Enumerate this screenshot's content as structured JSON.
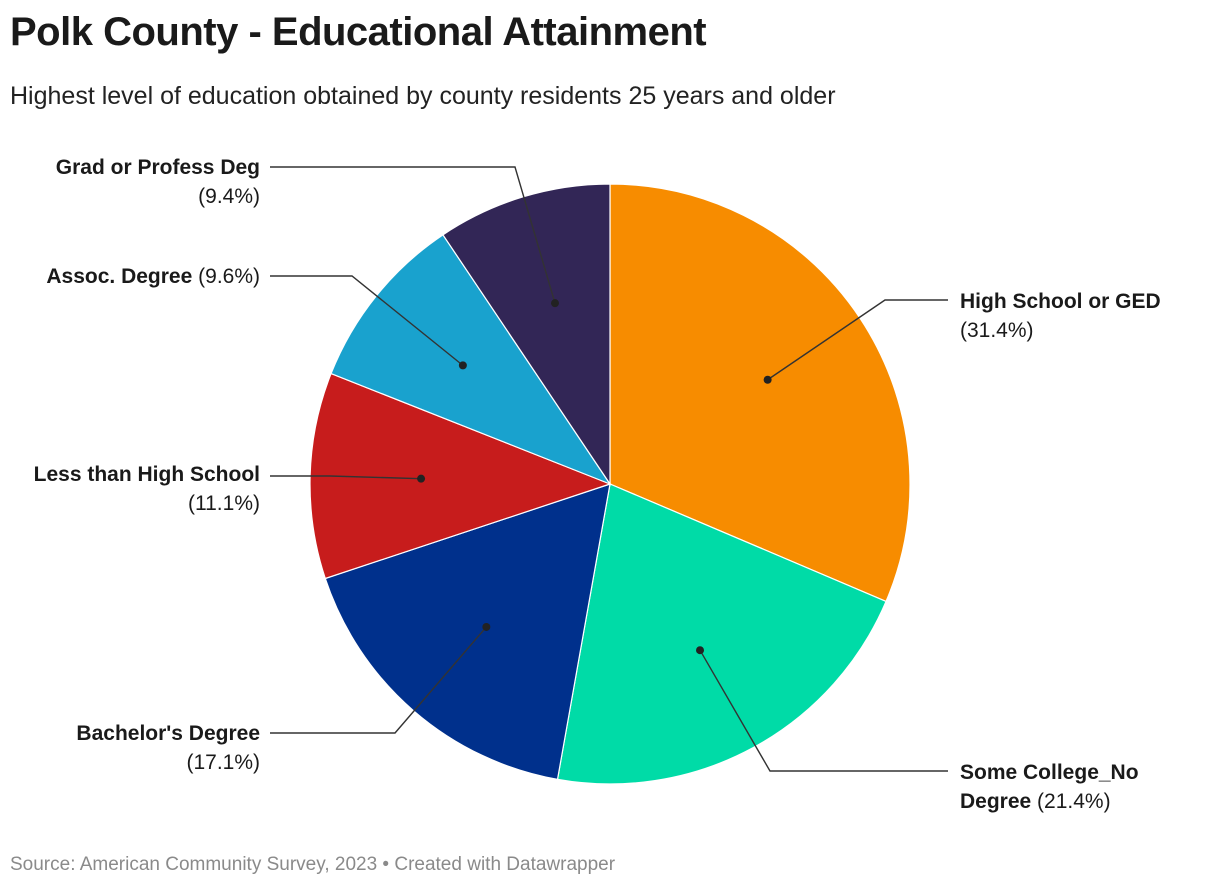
{
  "title": "Polk County - Educational Attainment",
  "subtitle": "Highest level of education obtained by county residents 25 years and older",
  "source": "Source: American Community Survey, 2023 • Created with Datawrapper",
  "chart_data": {
    "type": "pie",
    "title": "Polk County - Educational Attainment",
    "subtitle": "Highest level of education obtained by county residents 25 years and older",
    "categories": [
      "High School or GED",
      "Some College_No Degree",
      "Bachelor's Degree",
      "Less than High School",
      "Assoc. Degree",
      "Grad or Profess Deg"
    ],
    "values": [
      31.4,
      21.4,
      17.1,
      11.1,
      9.6,
      9.4
    ],
    "value_labels": [
      "(31.4%)",
      "(21.4%)",
      "(17.1%)",
      "(11.1%)",
      "(9.6%)",
      "(9.4%)"
    ],
    "colors": [
      "#f78c00",
      "#00dba7",
      "#00308c",
      "#c71c1c",
      "#19a2ce",
      "#322656"
    ],
    "unit": "%"
  }
}
